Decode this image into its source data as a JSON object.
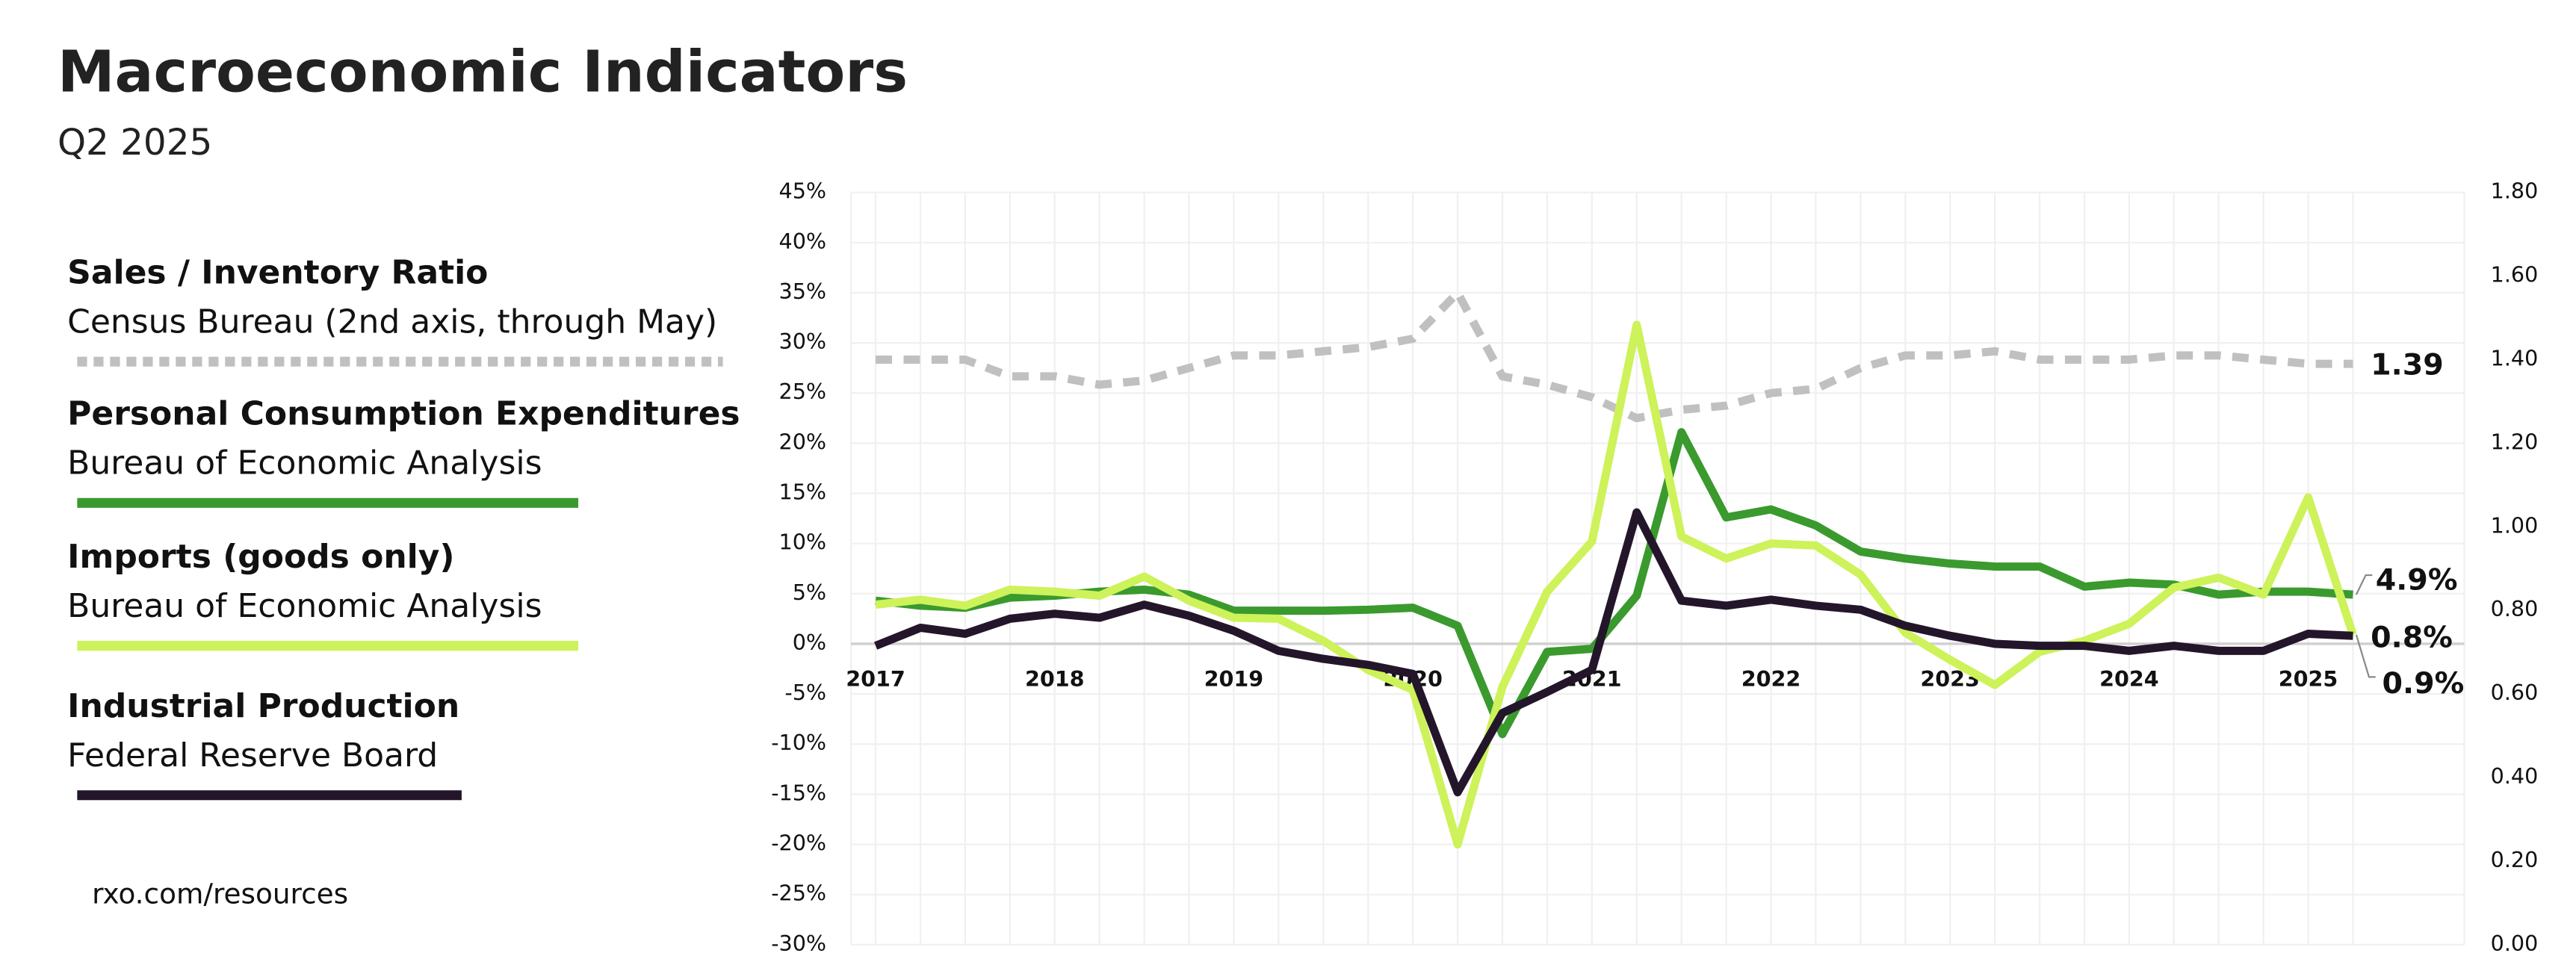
{
  "chart_data": {
    "type": "line",
    "title": "Macroeconomic Indicators",
    "subtitle": "Q2 2025",
    "footer": "rxo.com/resources",
    "categories": [
      "2017",
      null,
      null,
      null,
      "2018",
      null,
      null,
      null,
      "2019",
      null,
      null,
      null,
      "2020",
      null,
      null,
      null,
      "2021",
      null,
      null,
      null,
      "2022",
      null,
      null,
      null,
      "2023",
      null,
      null,
      null,
      "2024",
      null,
      null,
      null,
      "2025",
      null
    ],
    "ylim": [
      -30,
      45
    ],
    "yticks": [
      {
        "value": -30,
        "label": "-30%"
      },
      {
        "value": -25,
        "label": "-25%"
      },
      {
        "value": -20,
        "label": "-20%"
      },
      {
        "value": -15,
        "label": "-15%"
      },
      {
        "value": -10,
        "label": "-10%"
      },
      {
        "value": -5,
        "label": "-5%"
      },
      {
        "value": 0,
        "label": "0%"
      },
      {
        "value": 5,
        "label": "5%"
      },
      {
        "value": 10,
        "label": "10%"
      },
      {
        "value": 15,
        "label": "15%"
      },
      {
        "value": 20,
        "label": "20%"
      },
      {
        "value": 25,
        "label": "25%"
      },
      {
        "value": 30,
        "label": "30%"
      },
      {
        "value": 35,
        "label": "35%"
      },
      {
        "value": 40,
        "label": "40%"
      },
      {
        "value": 45,
        "label": "45%"
      }
    ],
    "y2lim": [
      0,
      1.8
    ],
    "y2ticks": [
      {
        "value": 0,
        "label": "0.00"
      },
      {
        "value": 0.2,
        "label": "0.20"
      },
      {
        "value": 0.4,
        "label": "0.40"
      },
      {
        "value": 0.6,
        "label": "0.60"
      },
      {
        "value": 0.8,
        "label": "0.80"
      },
      {
        "value": 1,
        "label": "1.00"
      },
      {
        "value": 1.2,
        "label": "1.20"
      },
      {
        "value": 1.4,
        "label": "1.40"
      },
      {
        "value": 1.6,
        "label": "1.60"
      },
      {
        "value": 1.8,
        "label": "1.80"
      }
    ],
    "grid": true,
    "series": [
      {
        "name": "Sales / Inventory Ratio",
        "source": "Census Bureau (2nd axis, through May)",
        "color": "#c0c0c0",
        "dashed": true,
        "axis": "y2",
        "values": [
          1.4,
          1.4,
          1.4,
          1.36,
          1.36,
          1.34,
          1.35,
          1.38,
          1.41,
          1.41,
          1.42,
          1.43,
          1.45,
          1.56,
          1.36,
          1.34,
          1.31,
          1.26,
          1.28,
          1.29,
          1.32,
          1.33,
          1.38,
          1.41,
          1.41,
          1.42,
          1.4,
          1.4,
          1.4,
          1.41,
          1.41,
          1.4,
          1.39,
          1.39
        ],
        "value_labels": [
          null,
          null,
          null,
          null,
          null,
          null,
          null,
          null,
          null,
          null,
          null,
          null,
          null,
          null,
          null,
          null,
          null,
          null,
          null,
          null,
          null,
          null,
          null,
          null,
          null,
          null,
          null,
          null,
          null,
          null,
          null,
          null,
          null,
          "1.39"
        ]
      },
      {
        "name": "Personal Consumption Expenditures",
        "source": "Bureau of Economic Analysis",
        "color": "#3a9a2e",
        "values": [
          4.3,
          3.8,
          3.6,
          4.6,
          4.8,
          5.2,
          5.4,
          4.9,
          3.3,
          3.3,
          3.3,
          3.4,
          3.6,
          1.8,
          -9.0,
          -0.8,
          -0.5,
          4.8,
          21.1,
          12.6,
          13.4,
          11.8,
          9.2,
          8.5,
          8.0,
          7.7,
          7.7,
          5.7,
          6.1,
          5.9,
          4.9,
          5.2,
          5.2,
          4.9
        ],
        "value_labels": [
          null,
          null,
          null,
          null,
          null,
          null,
          null,
          null,
          null,
          null,
          null,
          null,
          null,
          null,
          null,
          null,
          null,
          null,
          null,
          null,
          null,
          null,
          null,
          null,
          null,
          null,
          null,
          null,
          null,
          null,
          null,
          null,
          null,
          "4.9%"
        ]
      },
      {
        "name": "Imports (goods only)",
        "source": "Bureau of Economic Analysis",
        "color": "#cdf25a",
        "values": [
          3.9,
          4.4,
          3.8,
          5.4,
          5.2,
          4.8,
          6.7,
          4.3,
          2.6,
          2.5,
          0.3,
          -2.6,
          -4.6,
          -20.0,
          -4.3,
          5.2,
          10.2,
          31.8,
          10.7,
          8.5,
          10.0,
          9.8,
          6.9,
          1.1,
          -1.6,
          -4.1,
          -0.8,
          0.3,
          2.0,
          5.6,
          6.6,
          4.9,
          14.6,
          0.9
        ],
        "value_labels": [
          null,
          null,
          null,
          null,
          null,
          null,
          null,
          null,
          null,
          null,
          null,
          null,
          null,
          null,
          null,
          null,
          null,
          null,
          null,
          null,
          null,
          null,
          null,
          null,
          null,
          null,
          null,
          null,
          null,
          null,
          null,
          null,
          null,
          "0.9%"
        ]
      },
      {
        "name": "Industrial Production",
        "source": "Federal Reserve Board",
        "color": "#23162a",
        "values": [
          -0.2,
          1.6,
          1.0,
          2.5,
          3.0,
          2.6,
          3.9,
          2.8,
          1.3,
          -0.7,
          -1.5,
          -2.1,
          -3.0,
          -14.8,
          -6.9,
          -4.8,
          -2.6,
          13.1,
          4.3,
          3.8,
          4.4,
          3.8,
          3.4,
          1.8,
          0.8,
          0.0,
          -0.2,
          -0.2,
          -0.7,
          -0.2,
          -0.7,
          -0.7,
          1.0,
          0.8
        ],
        "value_labels": [
          null,
          null,
          null,
          null,
          null,
          null,
          null,
          null,
          null,
          null,
          null,
          null,
          null,
          null,
          null,
          null,
          null,
          null,
          null,
          null,
          null,
          null,
          null,
          null,
          null,
          null,
          null,
          null,
          null,
          null,
          null,
          null,
          null,
          "0.8%"
        ]
      }
    ]
  }
}
